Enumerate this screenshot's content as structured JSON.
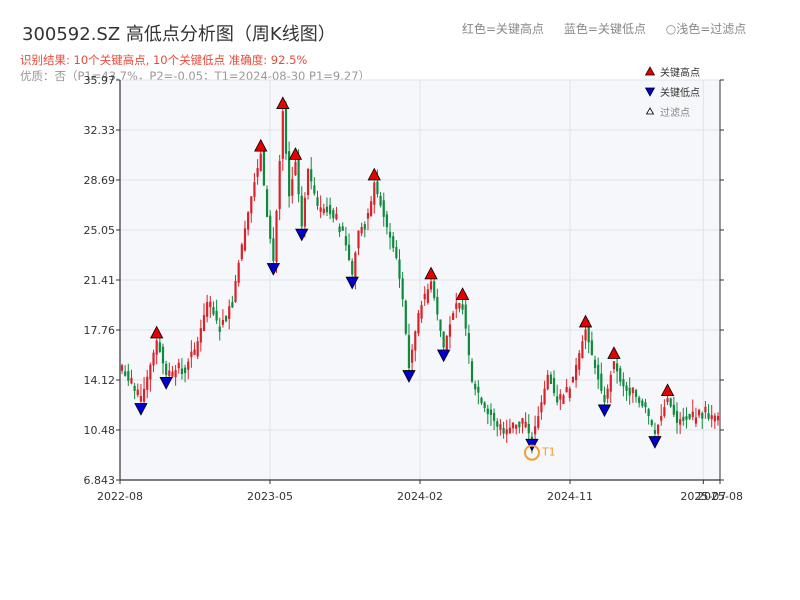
{
  "title": "300592.SZ 高低点分析图（周K线图）",
  "legend_top": {
    "red": "红色=关键高点",
    "blue": "蓝色=关键低点",
    "light": "○浅色=过滤点"
  },
  "subtitle_result": "识别结果: 10个关键高点, 10个关键低点   准确度: 92.5%",
  "subtitle_quality": "优质：否（P1=43.7%，P2=-0.05；T1=2024-08-30 P1=9.27）",
  "colors": {
    "up": "#d8232a",
    "down": "#0f8a3c",
    "high_marker": "#e60000",
    "low_marker": "#0000cc",
    "t1": "#f0a030",
    "plot_bg": "#f6f7fa",
    "grid": "#dfe3ea"
  },
  "chart_data": {
    "type": "candlestick",
    "ylim": [
      6.843,
      35.97
    ],
    "yticks": [
      "6.843",
      "10.48",
      "14.12",
      "17.76",
      "21.41",
      "25.05",
      "28.69",
      "32.33",
      "35.97"
    ],
    "xticks": [
      "2022-08",
      "2023-05",
      "2024-02",
      "2024-11",
      "2025-07",
      "2025-08"
    ],
    "x_start": "2022-08",
    "x_end": "2025-08",
    "grid": true,
    "legend": {
      "position": "top-right",
      "items": [
        {
          "label": "关键高点",
          "marker": "triangle-up",
          "color": "#e60000"
        },
        {
          "label": "关键低点",
          "marker": "triangle-down",
          "color": "#0000cc"
        },
        {
          "label": "过滤点",
          "marker": "triangle-up-hollow",
          "color": "#888888"
        }
      ]
    },
    "anchors": [
      [
        0,
        14.8
      ],
      [
        6,
        12.6
      ],
      [
        11,
        17.0
      ],
      [
        14,
        14.5
      ],
      [
        20,
        15.2
      ],
      [
        23,
        16.0
      ],
      [
        27,
        19.8
      ],
      [
        31,
        18.0
      ],
      [
        35,
        20.0
      ],
      [
        38,
        24.0
      ],
      [
        41,
        27.5
      ],
      [
        44,
        30.6
      ],
      [
        46,
        26.0
      ],
      [
        48,
        22.8
      ],
      [
        51,
        33.7
      ],
      [
        53,
        27.5
      ],
      [
        55,
        30.0
      ],
      [
        57,
        25.3
      ],
      [
        59,
        29.5
      ],
      [
        62,
        26.8
      ],
      [
        65,
        26.5
      ],
      [
        70,
        25.0
      ],
      [
        73,
        21.8
      ],
      [
        75,
        25.0
      ],
      [
        78,
        25.8
      ],
      [
        80,
        28.5
      ],
      [
        83,
        26.0
      ],
      [
        87,
        23.0
      ],
      [
        89,
        20.0
      ],
      [
        91,
        15.0
      ],
      [
        94,
        19.0
      ],
      [
        98,
        21.3
      ],
      [
        102,
        16.5
      ],
      [
        105,
        19.0
      ],
      [
        108,
        19.8
      ],
      [
        111,
        14.0
      ],
      [
        116,
        12.0
      ],
      [
        120,
        10.3
      ],
      [
        126,
        11.0
      ],
      [
        130,
        10.0
      ],
      [
        132,
        11.5
      ],
      [
        135,
        14.5
      ],
      [
        138,
        12.5
      ],
      [
        142,
        13.5
      ],
      [
        147,
        17.8
      ],
      [
        150,
        15.0
      ],
      [
        153,
        12.5
      ],
      [
        156,
        15.5
      ],
      [
        158,
        14.0
      ],
      [
        161,
        13.0
      ],
      [
        165,
        12.8
      ],
      [
        169,
        10.2
      ],
      [
        173,
        12.8
      ],
      [
        176,
        11.0
      ],
      [
        180,
        11.3
      ],
      [
        186,
        11.6
      ],
      [
        189,
        11.5
      ]
    ],
    "highs": [
      {
        "i": 11,
        "price": 17.0
      },
      {
        "i": 44,
        "price": 30.6
      },
      {
        "i": 51,
        "price": 33.7
      },
      {
        "i": 55,
        "price": 30.0
      },
      {
        "i": 80,
        "price": 28.5
      },
      {
        "i": 98,
        "price": 21.3
      },
      {
        "i": 108,
        "price": 19.8
      },
      {
        "i": 147,
        "price": 17.8
      },
      {
        "i": 156,
        "price": 15.5
      },
      {
        "i": 173,
        "price": 12.8
      }
    ],
    "lows": [
      {
        "i": 6,
        "price": 12.6
      },
      {
        "i": 14,
        "price": 14.5
      },
      {
        "i": 48,
        "price": 22.8
      },
      {
        "i": 57,
        "price": 25.3
      },
      {
        "i": 73,
        "price": 21.8
      },
      {
        "i": 91,
        "price": 15.0
      },
      {
        "i": 102,
        "price": 16.5
      },
      {
        "i": 130,
        "price": 10.0
      },
      {
        "i": 153,
        "price": 12.5
      },
      {
        "i": 169,
        "price": 10.2
      }
    ],
    "t1": {
      "i": 130,
      "price": 9.27,
      "label": "T1"
    }
  }
}
